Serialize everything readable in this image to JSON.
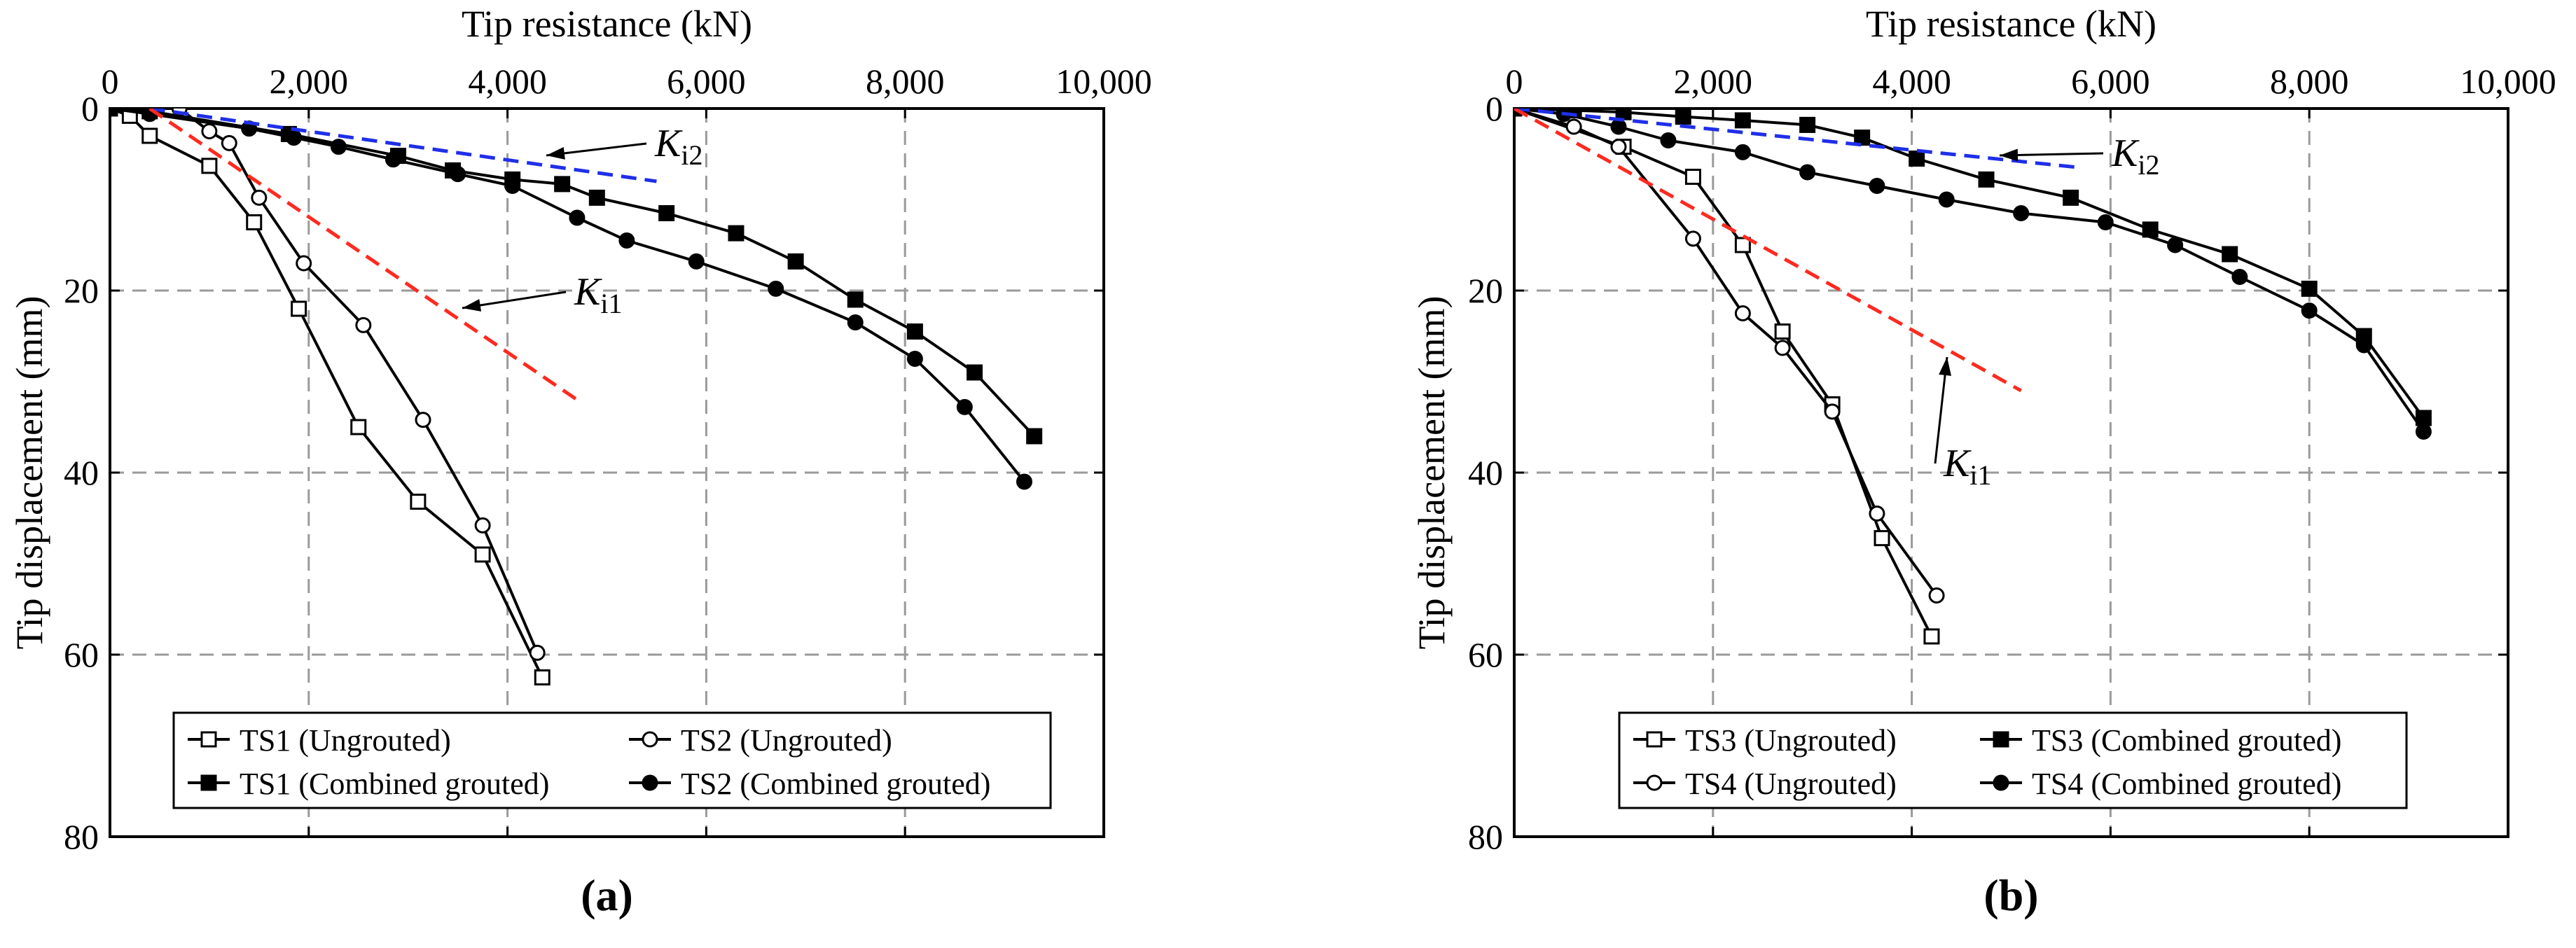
{
  "chart_data": [
    {
      "type": "line",
      "panel_label": "(a)",
      "xlabel": "Tip resistance (kN)",
      "ylabel": "Tip displacement (mm)",
      "xlim": [
        0,
        10000
      ],
      "ylim": [
        0,
        80
      ],
      "y_inverted": true,
      "x_axis_position": "top",
      "x_ticks": [
        0,
        2000,
        4000,
        6000,
        8000,
        10000
      ],
      "x_tick_labels": [
        "0",
        "2,000",
        "4,000",
        "6,000",
        "8,000",
        "10,000"
      ],
      "y_ticks": [
        0,
        20,
        40,
        60,
        80
      ],
      "y_tick_labels": [
        "0",
        "20",
        "40",
        "60",
        "80"
      ],
      "grid": true,
      "legend_position": "bottom",
      "series": [
        {
          "name": "TS1 (Ungrouted)",
          "marker": "square-open",
          "x": [
            0,
            200,
            400,
            1000,
            1450,
            1900,
            2500,
            3100,
            3750,
            4350
          ],
          "y": [
            0,
            0.8,
            3,
            6.3,
            12.5,
            22,
            35,
            43.2,
            49,
            62.5
          ]
        },
        {
          "name": "TS2 (Ungrouted)",
          "marker": "circle-open",
          "x": [
            0,
            700,
            1000,
            1200,
            1500,
            1950,
            2550,
            3150,
            3750,
            4300
          ],
          "y": [
            0,
            0,
            2.5,
            3.8,
            9.8,
            17,
            23.8,
            34.2,
            45.8,
            59.8
          ]
        },
        {
          "name": "TS1 (Combined grouted)",
          "marker": "square-filled",
          "x": [
            0,
            400,
            1800,
            2900,
            3450,
            4050,
            4550,
            4900,
            5600,
            6300,
            6900,
            7500,
            8100,
            8700,
            9300
          ],
          "y": [
            0,
            0.3,
            2.8,
            5.2,
            6.8,
            7.8,
            8.3,
            9.8,
            11.5,
            13.7,
            16.8,
            21,
            24.5,
            29,
            36
          ]
        },
        {
          "name": "TS2 (Combined grouted)",
          "marker": "circle-filled",
          "x": [
            0,
            400,
            1400,
            1850,
            2300,
            2850,
            3500,
            4050,
            4700,
            5200,
            5900,
            6700,
            7500,
            8100,
            8600,
            9200
          ],
          "y": [
            0,
            0.6,
            2.2,
            3.2,
            4.2,
            5.6,
            7.2,
            8.5,
            12,
            14.5,
            16.8,
            19.8,
            23.5,
            27.5,
            32.8,
            41
          ]
        }
      ],
      "reference_lines": [
        {
          "label": "K",
          "subscript": "i2",
          "color": "#1f2fe8",
          "x": [
            400,
            5500
          ],
          "y": [
            0,
            8
          ]
        },
        {
          "label": "K",
          "subscript": "i1",
          "color": "#ff2a1f",
          "x": [
            400,
            4700
          ],
          "y": [
            0,
            32
          ]
        }
      ]
    },
    {
      "type": "line",
      "panel_label": "(b)",
      "xlabel": "Tip resistance (kN)",
      "ylabel": "Tip displacement (mm)",
      "xlim": [
        0,
        10000
      ],
      "ylim": [
        0,
        80
      ],
      "y_inverted": true,
      "x_axis_position": "top",
      "x_ticks": [
        0,
        2000,
        4000,
        6000,
        8000,
        10000
      ],
      "x_tick_labels": [
        "0",
        "2,000",
        "4,000",
        "6,000",
        "8,000",
        "10,000"
      ],
      "y_ticks": [
        0,
        20,
        40,
        60,
        80
      ],
      "y_tick_labels": [
        "0",
        "20",
        "40",
        "60",
        "80"
      ],
      "grid": true,
      "legend_position": "bottom",
      "series": [
        {
          "name": "TS3 (Ungrouted)",
          "marker": "square-open",
          "x": [
            0,
            1100,
            1800,
            2300,
            2700,
            3200,
            3700,
            4200
          ],
          "y": [
            0,
            4.2,
            7.5,
            15,
            24.5,
            32.5,
            47.2,
            58
          ]
        },
        {
          "name": "TS3 (Combined grouted)",
          "marker": "square-filled",
          "x": [
            0,
            600,
            1100,
            1700,
            2300,
            2950,
            3500,
            4050,
            4750,
            5600,
            6400,
            7200,
            8000,
            8550,
            9150
          ],
          "y": [
            0,
            0.2,
            0.4,
            0.9,
            1.3,
            1.8,
            3.2,
            5.5,
            7.8,
            9.8,
            13.3,
            16,
            19.8,
            25,
            34
          ]
        },
        {
          "name": "TS4 (Ungrouted)",
          "marker": "circle-open",
          "x": [
            0,
            600,
            1050,
            1800,
            2300,
            2700,
            3200,
            3650,
            4250
          ],
          "y": [
            0,
            2,
            4.2,
            14.3,
            22.5,
            26.3,
            33.3,
            44.5,
            53.5
          ]
        },
        {
          "name": "TS4 (Combined grouted)",
          "marker": "circle-filled",
          "x": [
            0,
            500,
            1050,
            1550,
            2300,
            2950,
            3650,
            4350,
            5100,
            5950,
            6650,
            7300,
            8000,
            8550,
            9150
          ],
          "y": [
            0,
            0.6,
            2,
            3.5,
            4.8,
            7,
            8.5,
            10,
            11.5,
            12.5,
            15,
            18.5,
            22.2,
            26,
            35.5
          ]
        }
      ],
      "reference_lines": [
        {
          "label": "K",
          "subscript": "i2",
          "color": "#1f2fe8",
          "x": [
            0,
            5700
          ],
          "y": [
            0,
            6.5
          ]
        },
        {
          "label": "K",
          "subscript": "i1",
          "color": "#ff2a1f",
          "x": [
            0,
            5100
          ],
          "y": [
            0,
            31
          ]
        }
      ]
    }
  ]
}
